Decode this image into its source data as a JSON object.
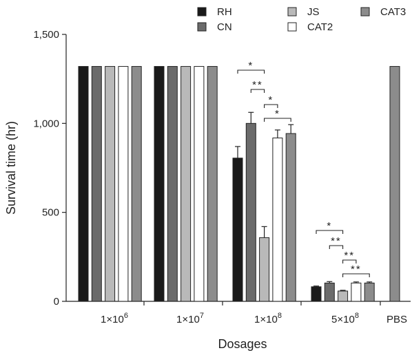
{
  "chart_data": {
    "type": "bar",
    "xlabel": "Dosages",
    "ylabel": "Survival time (hr)",
    "ylim": [
      0,
      1500
    ],
    "yticks": [
      0,
      500,
      1000,
      1500
    ],
    "ytick_labels": [
      "0",
      "500",
      "1,000",
      "1,500"
    ],
    "grid": false,
    "legend_position": "top-right",
    "categories": [
      {
        "base": "1×10",
        "exp": "6"
      },
      {
        "base": "1×10",
        "exp": "7"
      },
      {
        "base": "1×10",
        "exp": "8"
      },
      {
        "base": "5×10",
        "exp": "8"
      },
      {
        "base": "PBS",
        "exp": ""
      }
    ],
    "series": [
      {
        "name": "RH",
        "color": "#1a1a1a",
        "values": [
          1320,
          1320,
          805,
          82,
          null
        ],
        "errors": [
          0,
          0,
          65,
          4,
          0
        ]
      },
      {
        "name": "CN",
        "color": "#6b6b6b",
        "values": [
          1320,
          1320,
          1000,
          103,
          null
        ],
        "errors": [
          0,
          0,
          62,
          8,
          0
        ]
      },
      {
        "name": "JS",
        "color": "#b9b9b9",
        "values": [
          1320,
          1320,
          358,
          58,
          null
        ],
        "errors": [
          0,
          0,
          62,
          4,
          0
        ]
      },
      {
        "name": "CAT2",
        "color": "#ffffff",
        "values": [
          1320,
          1320,
          918,
          103,
          null
        ],
        "errors": [
          0,
          0,
          45,
          6,
          0
        ]
      },
      {
        "name": "CAT3",
        "color": "#8c8c8c",
        "values": [
          1320,
          1320,
          943,
          103,
          1320
        ],
        "errors": [
          0,
          0,
          50,
          6,
          0
        ]
      }
    ],
    "significance": [
      {
        "category": 2,
        "from": 0,
        "to": 2,
        "label": "*"
      },
      {
        "category": 2,
        "from": 1,
        "to": 2,
        "label": "**"
      },
      {
        "category": 2,
        "from": 2,
        "to": 3,
        "label": "*"
      },
      {
        "category": 2,
        "from": 2,
        "to": 4,
        "label": "*"
      },
      {
        "category": 3,
        "from": 0,
        "to": 2,
        "label": "*"
      },
      {
        "category": 3,
        "from": 1,
        "to": 2,
        "label": "**"
      },
      {
        "category": 3,
        "from": 2,
        "to": 3,
        "label": "**"
      },
      {
        "category": 3,
        "from": 2,
        "to": 4,
        "label": "**"
      }
    ]
  }
}
